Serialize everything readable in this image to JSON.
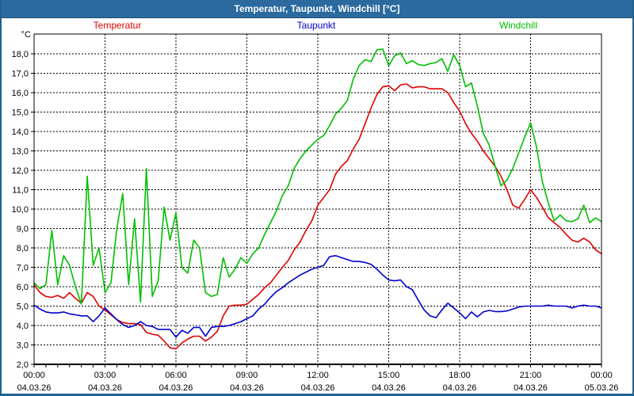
{
  "window": {
    "title": "Temperatur, Taupunkt, Windchill [°C]"
  },
  "legend": [
    {
      "label": "Temperatur",
      "color": "#e00000"
    },
    {
      "label": "Taupunkt",
      "color": "#0000cd"
    },
    {
      "label": "Windchill",
      "color": "#00bf00"
    }
  ],
  "chart_data": {
    "type": "line",
    "title": "Temperatur, Taupunkt, Windchill [°C]",
    "ylabel": "°C",
    "grid": {
      "horizontal": true,
      "vertical": true,
      "style": "dashed",
      "color": "#000000"
    },
    "y_axis": {
      "min": 2,
      "max": 18,
      "tick_step": 1,
      "unit_label": "°C",
      "tick_labels": [
        "18,0",
        "17,0",
        "16,0",
        "15,0",
        "14,0",
        "13,0",
        "12,0",
        "11,0",
        "10,0",
        "9,0",
        "8,0",
        "7,0",
        "6,0",
        "5,0",
        "4,0",
        "3,0",
        "2,0"
      ]
    },
    "x_axis": {
      "start_min": 0,
      "end_min": 1440,
      "minor_tick_min": 30,
      "major_gridline_hours": 3,
      "ticks": [
        {
          "hour": 0,
          "time": "00:00",
          "date": "04.03.26"
        },
        {
          "hour": 3,
          "time": "03:00",
          "date": "04.03.26"
        },
        {
          "hour": 6,
          "time": "06:00",
          "date": "04.03.26"
        },
        {
          "hour": 9,
          "time": "09:00",
          "date": "04.03.26"
        },
        {
          "hour": 12,
          "time": "12:00",
          "date": "04.03.26"
        },
        {
          "hour": 15,
          "time": "15:00",
          "date": "04.03.26"
        },
        {
          "hour": 18,
          "time": "18:00",
          "date": "04.03.26"
        },
        {
          "hour": 21,
          "time": "21:00",
          "date": "04.03.26"
        },
        {
          "hour": 24,
          "time": "00:00",
          "date": "05.03.26"
        }
      ]
    },
    "sample_step_min": 15,
    "series": [
      {
        "name": "Temperatur",
        "color": "#e00000",
        "values": [
          6.1,
          5.7,
          5.5,
          5.45,
          5.55,
          5.4,
          5.7,
          5.4,
          5.15,
          5.7,
          5.5,
          5.0,
          4.8,
          4.55,
          4.3,
          4.15,
          4.1,
          4.1,
          4.05,
          3.65,
          3.55,
          3.5,
          3.2,
          2.85,
          2.8,
          3.1,
          3.3,
          3.45,
          3.45,
          3.2,
          3.4,
          3.7,
          4.5,
          5.0,
          5.05,
          5.05,
          5.1,
          5.35,
          5.6,
          5.95,
          6.2,
          6.6,
          7.0,
          7.35,
          7.9,
          8.3,
          8.9,
          9.4,
          10.2,
          10.6,
          11.0,
          11.8,
          12.2,
          12.5,
          13.1,
          13.6,
          14.4,
          15.2,
          15.9,
          16.3,
          16.35,
          16.1,
          16.4,
          16.45,
          16.25,
          16.3,
          16.3,
          16.2,
          16.2,
          16.2,
          16.0,
          15.5,
          15.05,
          14.4,
          13.9,
          13.5,
          13.0,
          12.6,
          12.2,
          11.7,
          11.0,
          10.2,
          10.05,
          10.5,
          11.0,
          10.6,
          10.1,
          9.55,
          9.3,
          9.05,
          8.7,
          8.4,
          8.3,
          8.5,
          8.3,
          7.9,
          7.7
        ]
      },
      {
        "name": "Taupunkt",
        "color": "#0000cd",
        "values": [
          5.05,
          4.85,
          4.7,
          4.65,
          4.65,
          4.7,
          4.6,
          4.55,
          4.5,
          4.5,
          4.2,
          4.5,
          4.9,
          4.6,
          4.3,
          4.05,
          3.9,
          4.0,
          4.2,
          4.0,
          3.95,
          3.8,
          3.8,
          3.8,
          3.4,
          3.75,
          3.6,
          3.9,
          3.9,
          3.45,
          3.9,
          3.95,
          3.95,
          4.0,
          4.1,
          4.2,
          4.35,
          4.5,
          4.85,
          5.1,
          5.45,
          5.75,
          5.95,
          6.2,
          6.4,
          6.6,
          6.75,
          6.9,
          7.0,
          7.1,
          7.55,
          7.6,
          7.5,
          7.4,
          7.3,
          7.3,
          7.25,
          7.15,
          6.9,
          6.6,
          6.35,
          6.3,
          6.35,
          6.0,
          5.85,
          5.3,
          4.8,
          4.5,
          4.4,
          4.8,
          5.15,
          4.9,
          4.65,
          4.35,
          4.7,
          4.45,
          4.7,
          4.78,
          4.72,
          4.72,
          4.75,
          4.85,
          4.95,
          5.0,
          5.0,
          5.0,
          5.0,
          5.05,
          5.0,
          5.0,
          5.0,
          4.9,
          5.0,
          5.05,
          5.0,
          5.0,
          4.9
        ]
      },
      {
        "name": "Windchill",
        "color": "#00bf00",
        "values": [
          6.2,
          5.9,
          6.1,
          8.9,
          6.1,
          7.6,
          7.1,
          6.0,
          5.1,
          11.7,
          7.1,
          8.0,
          5.7,
          6.2,
          9.0,
          10.8,
          6.1,
          9.5,
          5.2,
          12.1,
          5.5,
          6.3,
          10.1,
          8.4,
          9.8,
          7.0,
          6.7,
          8.4,
          8.0,
          5.7,
          5.5,
          5.6,
          7.5,
          6.5,
          6.9,
          7.5,
          7.2,
          7.7,
          8.0,
          8.7,
          9.3,
          9.9,
          10.7,
          11.2,
          12.1,
          12.6,
          13.0,
          13.3,
          13.6,
          13.8,
          14.3,
          14.9,
          15.2,
          15.6,
          16.7,
          17.4,
          17.7,
          17.6,
          18.2,
          18.25,
          17.4,
          17.9,
          18.05,
          17.5,
          17.65,
          17.45,
          17.4,
          17.5,
          17.55,
          17.75,
          17.1,
          17.95,
          17.4,
          16.3,
          16.5,
          15.3,
          13.9,
          13.3,
          12.2,
          11.2,
          11.5,
          12.1,
          12.9,
          13.7,
          14.45,
          13.2,
          11.4,
          10.3,
          9.4,
          9.7,
          9.4,
          9.35,
          9.5,
          10.2,
          9.3,
          9.55,
          9.35
        ]
      }
    ]
  }
}
